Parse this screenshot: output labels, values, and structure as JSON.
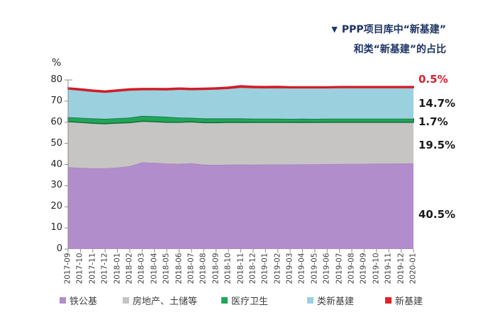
{
  "title": {
    "marker": "▼",
    "line1": "PPP项目库中“新基建”",
    "line2": "和类“新基建”的占比"
  },
  "chart_data": {
    "type": "area",
    "stacked": true,
    "title": "PPP项目库中“新基建”和类“新基建”的占比",
    "xlabel": "",
    "ylabel": "%",
    "ylim": [
      0,
      80
    ],
    "yticks": [
      0,
      10,
      20,
      30,
      40,
      50,
      60,
      70,
      80
    ],
    "grid": false,
    "legend_position": "bottom",
    "categories": [
      "2017-09",
      "2017-10",
      "2017-11",
      "2017-12",
      "2018-01",
      "2018-02",
      "2018-03",
      "2018-04",
      "2018-05",
      "2018-06",
      "2018-07",
      "2018-08",
      "2018-09",
      "2018-10",
      "2018-11",
      "2018-12",
      "2019-01",
      "2019-02",
      "2019-03",
      "2019-04",
      "2019-05",
      "2019-06",
      "2019-07",
      "2019-08",
      "2019-09",
      "2019-10",
      "2019-11",
      "2019-12",
      "2020-01"
    ],
    "series": [
      {
        "name": "铁公基",
        "color": "#b28dcb",
        "edge": "#a07ec0",
        "edge_width": 1.2,
        "outlined": false,
        "end_label": "40.5%",
        "end_label_color": "#1a1a1a",
        "values": [
          38.7,
          38.4,
          38.2,
          38.2,
          38.6,
          39.2,
          41.0,
          40.8,
          40.4,
          40.3,
          40.6,
          39.9,
          39.8,
          39.9,
          40.0,
          39.9,
          40.0,
          40.0,
          40.0,
          40.1,
          40.1,
          40.2,
          40.2,
          40.3,
          40.3,
          40.4,
          40.4,
          40.5,
          40.5
        ]
      },
      {
        "name": "房地产、土储等",
        "color": "#c6c5c3",
        "edge": "#b9b7b5",
        "edge_width": 1.0,
        "outlined": false,
        "end_label": "19.5%",
        "end_label_color": "#1a1a1a",
        "values": [
          21.6,
          21.5,
          21.3,
          21.1,
          21.0,
          20.6,
          19.5,
          19.5,
          19.6,
          19.7,
          19.6,
          19.9,
          20.0,
          20.0,
          20.0,
          20.0,
          19.9,
          19.9,
          19.9,
          19.9,
          19.8,
          19.8,
          19.8,
          19.7,
          19.7,
          19.6,
          19.6,
          19.5,
          19.5
        ]
      },
      {
        "name": "医疗卫生",
        "color": "#21a659",
        "edge": "#156f3b",
        "edge_width": 1.6,
        "outlined": true,
        "end_label": "1.7%",
        "end_label_color": "#1a1a1a",
        "values": [
          2.1,
          2.2,
          2.3,
          2.3,
          2.3,
          2.4,
          2.5,
          2.5,
          2.6,
          2.2,
          1.9,
          2.0,
          2.0,
          1.9,
          1.8,
          1.8,
          1.8,
          1.8,
          1.7,
          1.7,
          1.7,
          1.7,
          1.7,
          1.7,
          1.7,
          1.7,
          1.7,
          1.7,
          1.7
        ]
      },
      {
        "name": "类新基建",
        "color": "#9bd0df",
        "edge": "#8ec2d2",
        "edge_width": 1.0,
        "outlined": false,
        "end_label": "14.7%",
        "end_label_color": "#1a1a1a",
        "values": [
          13.3,
          13.1,
          12.8,
          12.6,
          12.8,
          13.0,
          12.4,
          12.6,
          12.7,
          13.4,
          13.3,
          13.7,
          13.9,
          14.2,
          14.8,
          14.7,
          14.6,
          14.7,
          14.7,
          14.6,
          14.7,
          14.6,
          14.7,
          14.7,
          14.7,
          14.7,
          14.7,
          14.7,
          14.7
        ]
      },
      {
        "name": "新基建",
        "color": "#dd2428",
        "edge": "#cf1e28",
        "edge_width": 1.8,
        "outlined": true,
        "end_label": "0.5%",
        "end_label_color": "#d7202e",
        "values": [
          0.6,
          0.6,
          0.6,
          0.6,
          0.6,
          0.6,
          0.6,
          0.6,
          0.6,
          0.6,
          0.6,
          0.6,
          0.6,
          0.6,
          0.7,
          0.6,
          0.6,
          0.6,
          0.5,
          0.5,
          0.5,
          0.5,
          0.5,
          0.5,
          0.5,
          0.5,
          0.5,
          0.5,
          0.5
        ]
      }
    ],
    "axis_color": "#8c8c8c"
  }
}
